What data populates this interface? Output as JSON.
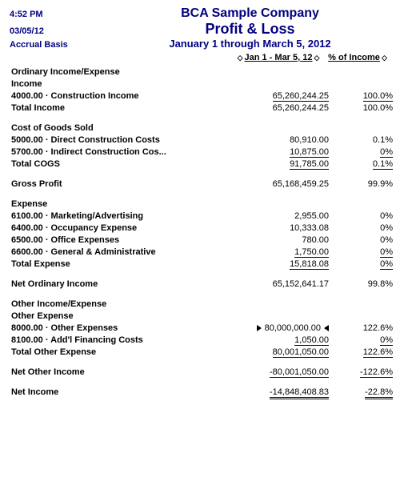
{
  "header": {
    "time": "4:52 PM",
    "date": "03/05/12",
    "basis": "Accrual Basis",
    "company": "BCA Sample Company",
    "title": "Profit & Loss",
    "period": "January 1 through March 5, 2012"
  },
  "columns": {
    "amount": "Jan 1 - Mar 5, 12",
    "percent": "% of Income"
  },
  "rows": {
    "ordinary_header": "Ordinary Income/Expense",
    "income_header": "Income",
    "construction_income": {
      "label": "4000.00 · Construction Income",
      "amt": "65,260,244.25",
      "pct": "100.0%"
    },
    "total_income": {
      "label": "Total Income",
      "amt": "65,260,244.25",
      "pct": "100.0%"
    },
    "cogs_header": "Cost of Goods Sold",
    "direct_costs": {
      "label": "5000.00 · Direct Construction Costs",
      "amt": "80,910.00",
      "pct": "0.1%"
    },
    "indirect_costs": {
      "label": "5700.00 · Indirect Construction Cos...",
      "amt": "10,875.00",
      "pct": "0%"
    },
    "total_cogs": {
      "label": "Total COGS",
      "amt": "91,785.00",
      "pct": "0.1%"
    },
    "gross_profit": {
      "label": "Gross Profit",
      "amt": "65,168,459.25",
      "pct": "99.9%"
    },
    "expense_header": "Expense",
    "marketing": {
      "label": "6100.00 · Marketing/Advertising",
      "amt": "2,955.00",
      "pct": "0%"
    },
    "occupancy": {
      "label": "6400.00 · Occupancy Expense",
      "amt": "10,333.08",
      "pct": "0%"
    },
    "office": {
      "label": "6500.00 · Office Expenses",
      "amt": "780.00",
      "pct": "0%"
    },
    "general": {
      "label": "6600.00 · General & Administrative",
      "amt": "1,750.00",
      "pct": "0%"
    },
    "total_expense": {
      "label": "Total Expense",
      "amt": "15,818.08",
      "pct": "0%"
    },
    "net_ordinary": {
      "label": "Net Ordinary Income",
      "amt": "65,152,641.17",
      "pct": "99.8%"
    },
    "other_ie_header": "Other Income/Expense",
    "other_expense_header": "Other Expense",
    "other_expenses": {
      "label": "8000.00 · Other Expenses",
      "amt": "80,000,000.00",
      "pct": "122.6%"
    },
    "addl_financing": {
      "label": "8100.00 · Add'l Financing Costs",
      "amt": "1,050.00",
      "pct": "0%"
    },
    "total_other_expense": {
      "label": "Total Other Expense",
      "amt": "80,001,050.00",
      "pct": "122.6%"
    },
    "net_other_income": {
      "label": "Net Other Income",
      "amt": "-80,001,050.00",
      "pct": "-122.6%"
    },
    "net_income": {
      "label": "Net Income",
      "amt": "-14,848,408.83",
      "pct": "-22.8%"
    }
  }
}
